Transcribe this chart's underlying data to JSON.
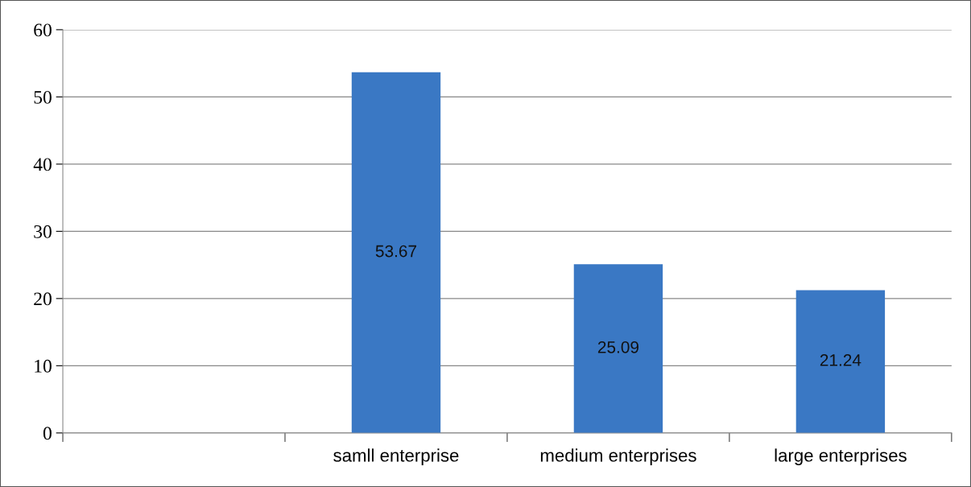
{
  "chart_data": {
    "type": "bar",
    "categories": [
      null,
      "samll enterprise",
      "medium enterprises",
      "large enterprises"
    ],
    "values": [
      null,
      53.67,
      25.09,
      21.24
    ],
    "color": "#3a78c4",
    "ylim": [
      0,
      60
    ],
    "yticks": [
      0,
      10,
      20,
      30,
      40,
      50,
      60
    ],
    "grid": "y",
    "data_labels": true
  }
}
